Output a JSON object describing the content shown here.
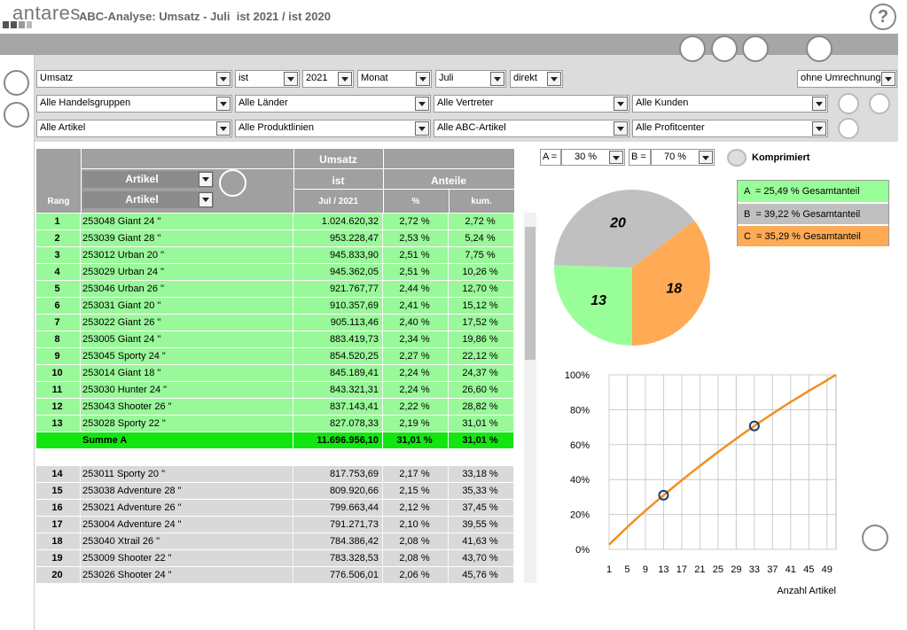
{
  "header": {
    "logo": "antares",
    "title": "ABC-Analyse: Umsatz - Juli  ist 2021 / ist 2020",
    "help": "?"
  },
  "filters": {
    "row1": [
      "Umsatz",
      "ist",
      "2021",
      "Monat",
      "Juli",
      "direkt"
    ],
    "conversion": "ohne Umrechnung",
    "row2": [
      "Alle Handelsgruppen",
      "Alle Länder",
      "Alle Vertreter",
      "Alle Kunden"
    ],
    "row3": [
      "Alle Artikel",
      "Alle Produktlinien",
      "Alle ABC-Artikel",
      "Alle Profitcenter"
    ]
  },
  "table": {
    "header": {
      "umsatz": "Umsatz",
      "artikel_1": "Artikel",
      "artikel_2": "Artikel",
      "rang": "Rang",
      "ist": "ist",
      "period": "Jul / 2021",
      "anteile": "Anteile",
      "pct": "%",
      "kum": "kum."
    },
    "rows_a": [
      [
        "1",
        "253048 Giant 24 \"",
        "1.024.620,32",
        "2,72 %",
        "2,72 %"
      ],
      [
        "2",
        "253039 Giant 28 \"",
        "953.228,47",
        "2,53 %",
        "5,24 %"
      ],
      [
        "3",
        "253012 Urban 20 \"",
        "945.833,90",
        "2,51 %",
        "7,75 %"
      ],
      [
        "4",
        "253029 Urban 24 \"",
        "945.362,05",
        "2,51 %",
        "10,26 %"
      ],
      [
        "5",
        "253046 Urban 26 \"",
        "921.767,77",
        "2,44 %",
        "12,70 %"
      ],
      [
        "6",
        "253031 Giant 20 \"",
        "910.357,69",
        "2,41 %",
        "15,12 %"
      ],
      [
        "7",
        "253022 Giant 26 \"",
        "905.113,46",
        "2,40 %",
        "17,52 %"
      ],
      [
        "8",
        "253005 Giant 24 \"",
        "883.419,73",
        "2,34 %",
        "19,86 %"
      ],
      [
        "9",
        "253045 Sporty 24 \"",
        "854.520,25",
        "2,27 %",
        "22,12 %"
      ],
      [
        "10",
        "253014 Giant 18 \"",
        "845.189,41",
        "2,24 %",
        "24,37 %"
      ],
      [
        "11",
        "253030 Hunter 24 \"",
        "843.321,31",
        "2,24 %",
        "26,60 %"
      ],
      [
        "12",
        "253043 Shooter 26 \"",
        "837.143,41",
        "2,22 %",
        "28,82 %"
      ],
      [
        "13",
        "253028 Sporty 22 \"",
        "827.078,33",
        "2,19 %",
        "31,01 %"
      ]
    ],
    "sum_a": [
      "Summe A",
      "11.696.956,10",
      "31,01 %",
      "31,01 %"
    ],
    "rows_b": [
      [
        "14",
        "253011 Sporty 20 \"",
        "817.753,69",
        "2,17 %",
        "33,18 %"
      ],
      [
        "15",
        "253038 Adventure 28 \"",
        "809.920,66",
        "2,15 %",
        "35,33 %"
      ],
      [
        "16",
        "253021 Adventure 26 \"",
        "799.663,44",
        "2,12 %",
        "37,45 %"
      ],
      [
        "17",
        "253004 Adventure 24 \"",
        "791.271,73",
        "2,10 %",
        "39,55 %"
      ],
      [
        "18",
        "253040 Xtrail 26 \"",
        "784.386,42",
        "2,08 %",
        "41,63 %"
      ],
      [
        "19",
        "253009 Shooter 22 \"",
        "783.328,53",
        "2,08 %",
        "43,70 %"
      ],
      [
        "20",
        "253026 Shooter 24 \"",
        "776.506,01",
        "2,06 %",
        "45,76 %"
      ]
    ]
  },
  "abc_controls": {
    "a_label": "A =",
    "a_value": "30 %",
    "b_label": "B =",
    "b_value": "70 %",
    "compressed": "Komprimiert"
  },
  "chart_data": [
    {
      "type": "pie",
      "categories": [
        "A",
        "B",
        "C"
      ],
      "values": [
        25.49,
        39.22,
        35.29
      ],
      "legend_labels": [
        "A  = 25,49 % Gesamtanteil",
        "B  = 39,22 % Gesamtanteil",
        "C  = 35,29 % Gesamtanteil"
      ],
      "slice_labels": [
        13,
        20,
        18
      ],
      "colors": [
        "#99ff99",
        "#c0c0c0",
        "#ffaa55"
      ]
    },
    {
      "type": "line",
      "x_label": "Anzahl Artikel",
      "x": [
        1,
        2,
        3,
        4,
        5,
        6,
        7,
        8,
        9,
        10,
        11,
        12,
        13,
        14,
        15,
        16,
        17,
        18,
        19,
        20,
        21,
        22,
        23,
        24,
        25,
        26,
        27,
        28,
        29,
        30,
        31,
        32,
        33,
        34,
        35,
        36,
        37,
        38,
        39,
        40,
        41,
        42,
        43,
        44,
        45,
        46,
        47,
        48,
        49,
        50,
        51
      ],
      "values": [
        2.72,
        5.24,
        7.75,
        10.26,
        12.7,
        15.12,
        17.52,
        19.86,
        22.12,
        24.37,
        26.6,
        28.82,
        31.01,
        33.18,
        35.33,
        37.45,
        39.55,
        41.63,
        43.7,
        45.76,
        47.8,
        49.8,
        51.8,
        53.8,
        55.8,
        57.7,
        59.6,
        61.5,
        63.4,
        65.3,
        67.1,
        68.9,
        70.7,
        72.5,
        74.3,
        76.0,
        77.7,
        79.4,
        81.1,
        82.8,
        84.4,
        86.0,
        87.6,
        89.2,
        90.8,
        92.3,
        93.8,
        95.3,
        96.9,
        98.5,
        100
      ],
      "color": "#f0901e",
      "marker_color": "#1f3a6e",
      "xlim": [
        1,
        51
      ],
      "ylim": [
        0,
        100
      ],
      "xticks": [
        1,
        5,
        9,
        13,
        17,
        21,
        25,
        29,
        33,
        37,
        41,
        45,
        49
      ],
      "yticks": [
        {
          "value": 0,
          "label": "0%"
        },
        {
          "value": 20,
          "label": "20%"
        },
        {
          "value": 40,
          "label": "40%"
        },
        {
          "value": 60,
          "label": "60%"
        },
        {
          "value": 80,
          "label": "80%"
        },
        {
          "value": 100,
          "label": "100%"
        }
      ],
      "grid": true
    }
  ]
}
